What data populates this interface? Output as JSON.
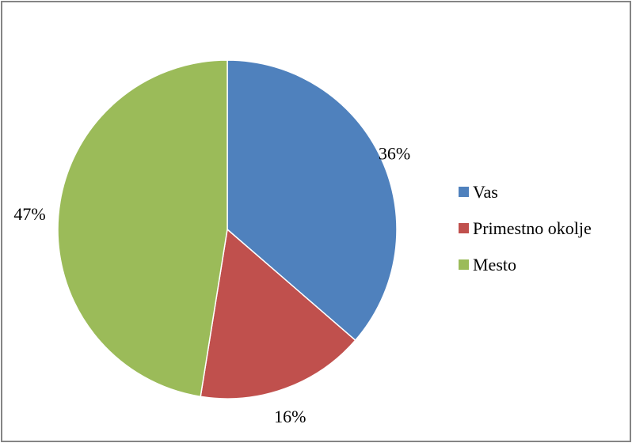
{
  "chart_data": {
    "type": "pie",
    "categories": [
      "Vas",
      "Primestno okolje",
      "Mesto"
    ],
    "values": [
      36,
      16,
      47
    ],
    "data_labels": [
      "36%",
      "16%",
      "47%"
    ],
    "colors": [
      "#4f81bd",
      "#c0504d",
      "#9bbb59"
    ],
    "start_angle_deg": 0,
    "direction": "clockwise",
    "legend_position": "right",
    "title": "",
    "grid": false
  }
}
